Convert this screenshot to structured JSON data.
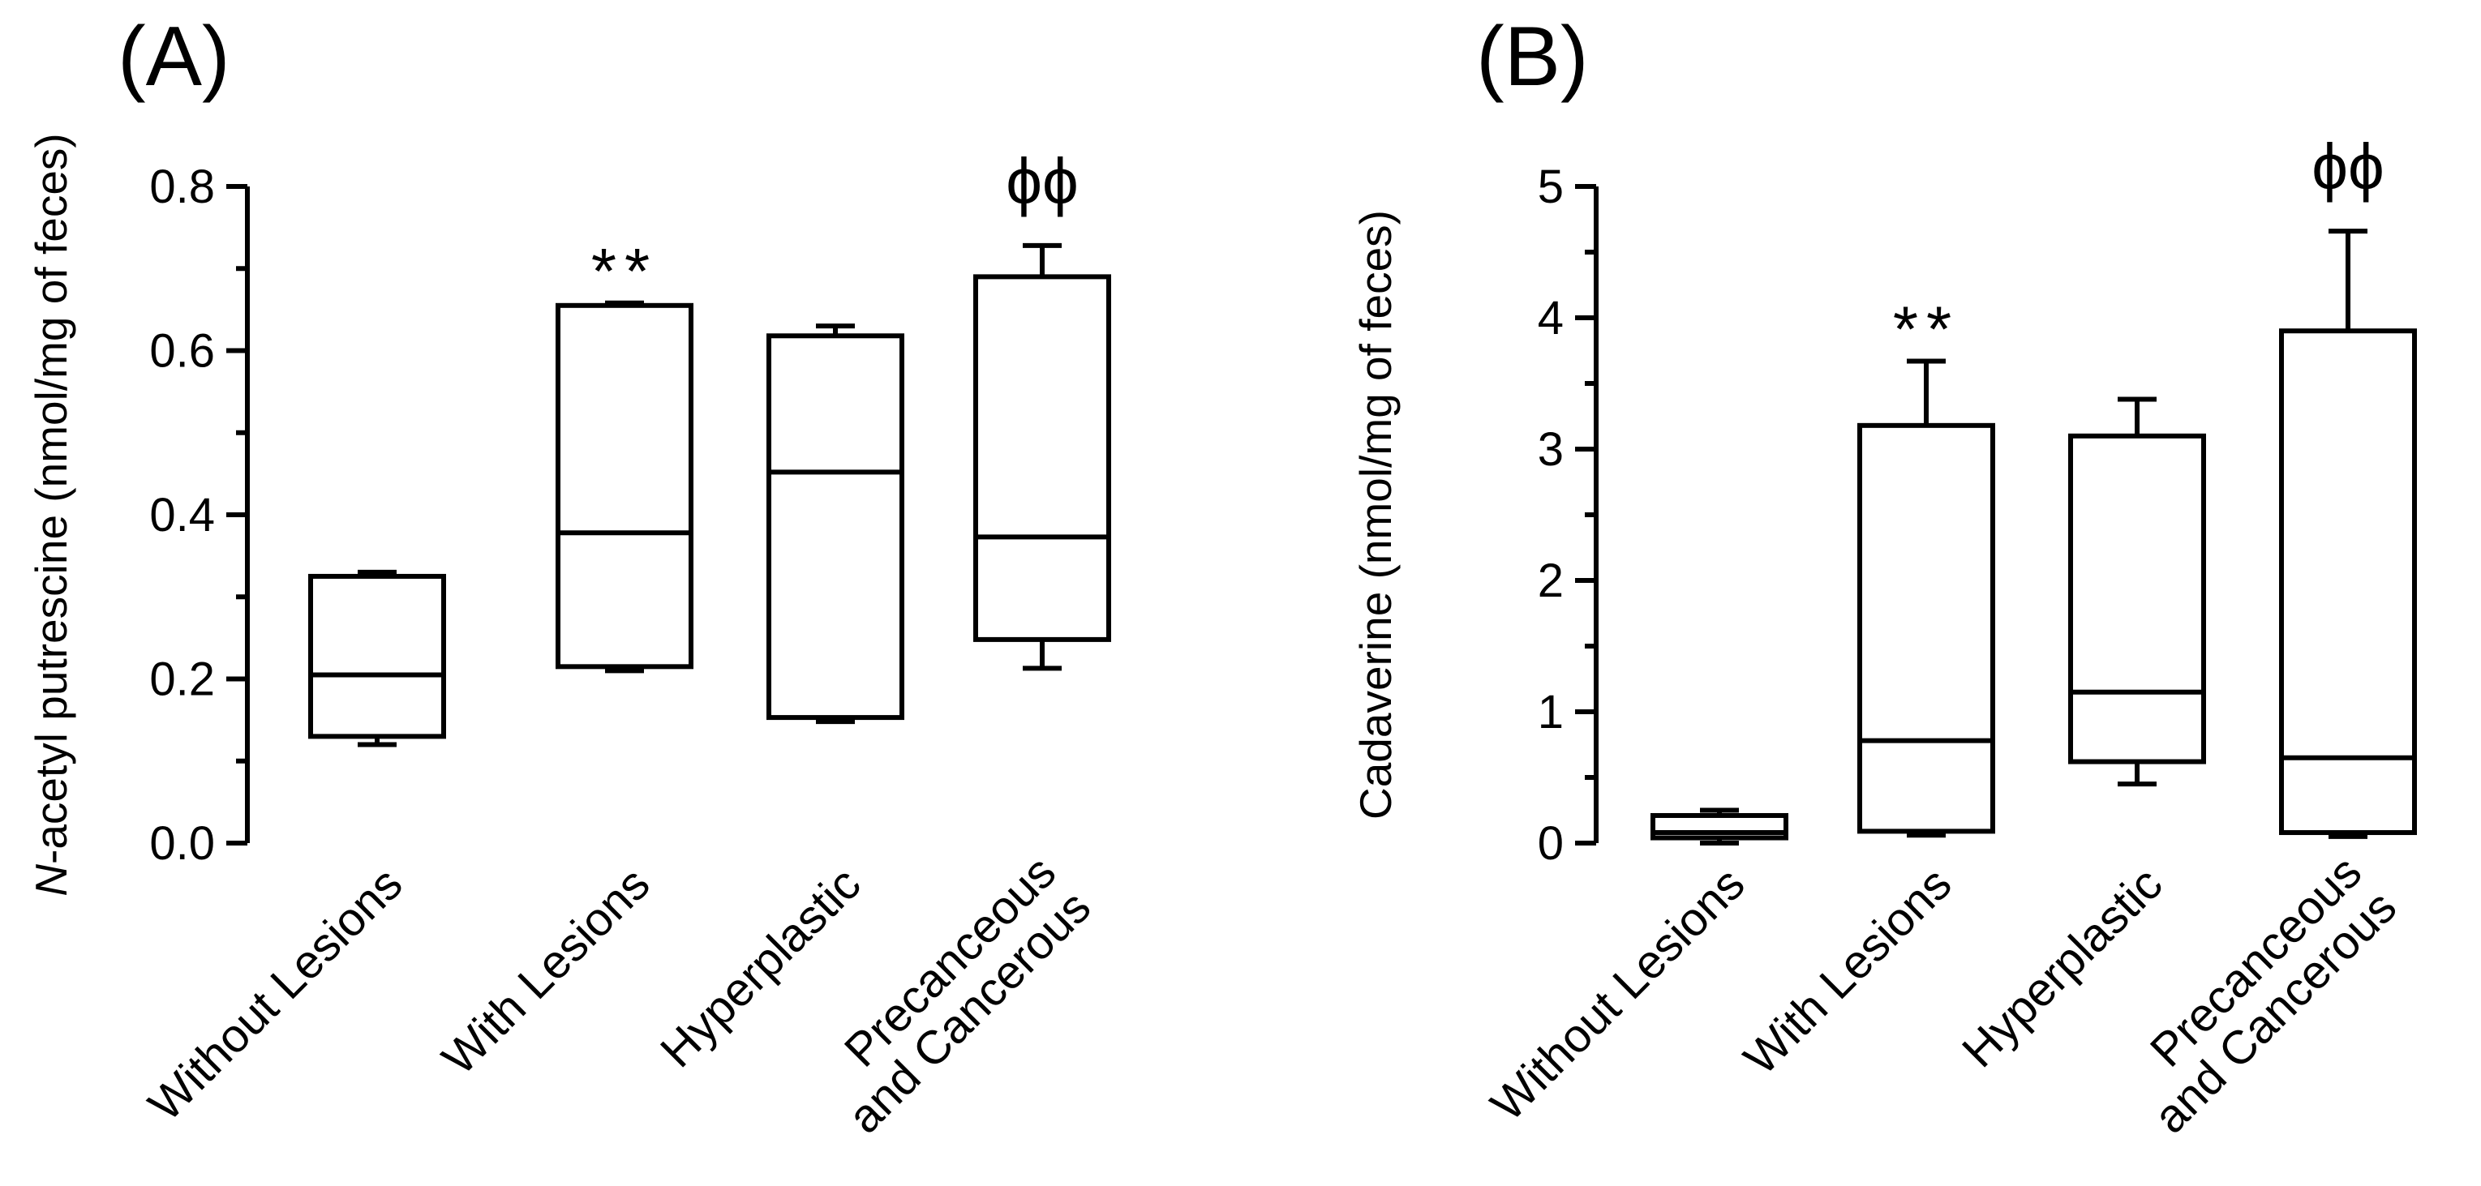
{
  "chart_data": [
    {
      "type": "box",
      "panel_label": "(A)",
      "ylabel_italic": "N",
      "ylabel_rest": "-acetyl putrescine (nmol/mg of feces)",
      "ylim": [
        0,
        0.8
      ],
      "yticks": [
        "0.0",
        "0.2",
        "0.4",
        "0.6",
        "0.8"
      ],
      "categories": [
        [
          "Without Lesions"
        ],
        [
          "With Lesions"
        ],
        [
          "Hyperplastic"
        ],
        [
          "Precanceous",
          "and Cancerous"
        ]
      ],
      "boxes": [
        {
          "min": 0.12,
          "q1": 0.13,
          "median": 0.205,
          "q3": 0.325,
          "max": 0.33,
          "annotation": ""
        },
        {
          "min": 0.21,
          "q1": 0.215,
          "median": 0.378,
          "q3": 0.655,
          "max": 0.658,
          "annotation": "**"
        },
        {
          "min": 0.148,
          "q1": 0.153,
          "median": 0.452,
          "q3": 0.618,
          "max": 0.63,
          "annotation": ""
        },
        {
          "min": 0.213,
          "q1": 0.248,
          "median": 0.373,
          "q3": 0.69,
          "max": 0.728,
          "annotation": "ϕϕ"
        }
      ]
    },
    {
      "type": "box",
      "panel_label": "(B)",
      "ylabel_italic": "",
      "ylabel_rest": "Cadaverine (nmol/mg of feces)",
      "ylim": [
        0,
        5
      ],
      "yticks": [
        "0",
        "1",
        "2",
        "3",
        "4",
        "5"
      ],
      "categories": [
        [
          "Without Lesions"
        ],
        [
          "With Lesions"
        ],
        [
          "Hyperplastic"
        ],
        [
          "Precanceous",
          "and Cancerous"
        ]
      ],
      "boxes": [
        {
          "min": 0.0,
          "q1": 0.04,
          "median": 0.08,
          "q3": 0.21,
          "max": 0.25,
          "annotation": ""
        },
        {
          "min": 0.06,
          "q1": 0.09,
          "median": 0.78,
          "q3": 3.18,
          "max": 3.67,
          "annotation": "**"
        },
        {
          "min": 0.45,
          "q1": 0.62,
          "median": 1.15,
          "q3": 3.1,
          "max": 3.38,
          "annotation": ""
        },
        {
          "min": 0.05,
          "q1": 0.08,
          "median": 0.65,
          "q3": 3.9,
          "max": 4.66,
          "annotation": "ϕϕ"
        }
      ]
    }
  ]
}
